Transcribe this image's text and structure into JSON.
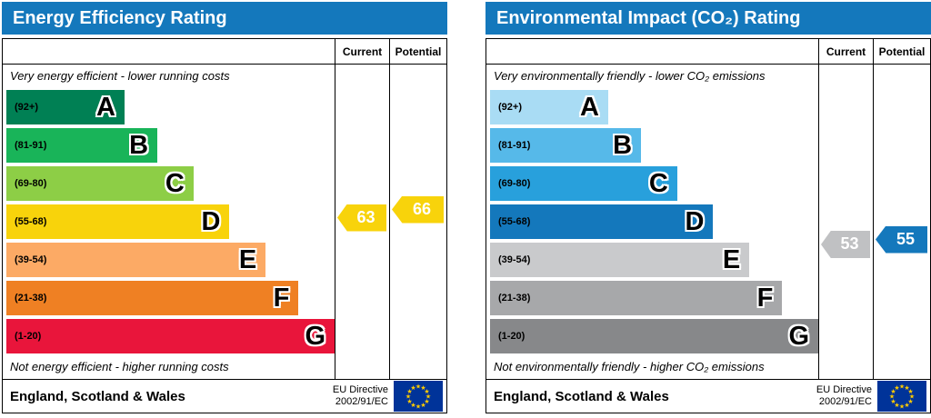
{
  "theme": {
    "header_bg": "#1478bc",
    "header_text": "#ffffff"
  },
  "chart_data": [
    {
      "type": "bar",
      "title": "Energy Efficiency Rating",
      "columns": {
        "current": "Current",
        "potential": "Potential"
      },
      "top_note": "Very energy efficient - lower running costs",
      "bottom_note": "Not energy efficient - higher running costs",
      "bands": [
        {
          "letter": "A",
          "range_label": "(92+)",
          "range": [
            92,
            100
          ],
          "color": "#008054",
          "width_pct": 36
        },
        {
          "letter": "B",
          "range_label": "(81-91)",
          "range": [
            81,
            91
          ],
          "color": "#19b459",
          "width_pct": 46
        },
        {
          "letter": "C",
          "range_label": "(69-80)",
          "range": [
            69,
            80
          ],
          "color": "#8dce46",
          "width_pct": 57
        },
        {
          "letter": "D",
          "range_label": "(55-68)",
          "range": [
            55,
            68
          ],
          "color": "#f8d30b",
          "width_pct": 68
        },
        {
          "letter": "E",
          "range_label": "(39-54)",
          "range": [
            39,
            54
          ],
          "color": "#fcaa65",
          "width_pct": 79
        },
        {
          "letter": "F",
          "range_label": "(21-38)",
          "range": [
            21,
            38
          ],
          "color": "#ef8023",
          "width_pct": 89
        },
        {
          "letter": "G",
          "range_label": "(1-20)",
          "range": [
            1,
            20
          ],
          "color": "#e9153b",
          "width_pct": 100
        }
      ],
      "current": {
        "value": 63,
        "color": "#f8d30b",
        "band": "D"
      },
      "potential": {
        "value": 66,
        "color": "#f8d30b",
        "band": "D"
      },
      "footer": {
        "region": "England, Scotland & Wales",
        "directive": [
          "EU Directive",
          "2002/91/EC"
        ]
      }
    },
    {
      "type": "bar",
      "title": "Environmental Impact (CO₂) Rating",
      "columns": {
        "current": "Current",
        "potential": "Potential"
      },
      "top_note": "Very environmentally friendly - lower CO₂ emissions",
      "bottom_note": "Not environmentally friendly - higher CO₂ emissions",
      "bands": [
        {
          "letter": "A",
          "range_label": "(92+)",
          "range": [
            92,
            100
          ],
          "color": "#a9dcf4",
          "width_pct": 36
        },
        {
          "letter": "B",
          "range_label": "(81-91)",
          "range": [
            81,
            91
          ],
          "color": "#56b9e9",
          "width_pct": 46
        },
        {
          "letter": "C",
          "range_label": "(69-80)",
          "range": [
            69,
            80
          ],
          "color": "#28a0dc",
          "width_pct": 57
        },
        {
          "letter": "D",
          "range_label": "(55-68)",
          "range": [
            55,
            68
          ],
          "color": "#1478bc",
          "width_pct": 68
        },
        {
          "letter": "E",
          "range_label": "(39-54)",
          "range": [
            39,
            54
          ],
          "color": "#c9cacc",
          "width_pct": 79
        },
        {
          "letter": "F",
          "range_label": "(21-38)",
          "range": [
            21,
            38
          ],
          "color": "#a7a8aa",
          "width_pct": 89
        },
        {
          "letter": "G",
          "range_label": "(1-20)",
          "range": [
            1,
            20
          ],
          "color": "#87888a",
          "width_pct": 100
        }
      ],
      "current": {
        "value": 53,
        "color": "#c0c1c3",
        "band": "E"
      },
      "potential": {
        "value": 55,
        "color": "#1478bc",
        "band": "D"
      },
      "footer": {
        "region": "England, Scotland & Wales",
        "directive": [
          "EU Directive",
          "2002/91/EC"
        ]
      }
    }
  ]
}
